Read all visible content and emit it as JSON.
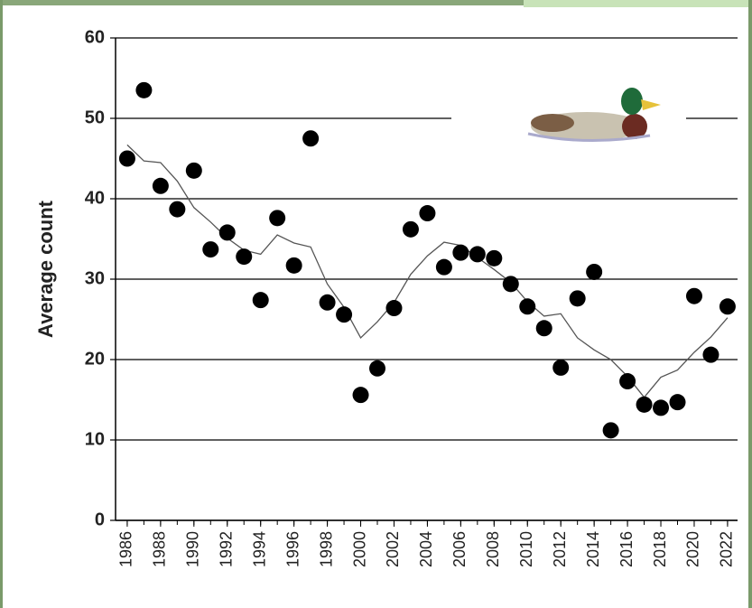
{
  "chart_data": {
    "type": "scatter",
    "y_label": "Average count",
    "x": [
      1986,
      1987,
      1988,
      1989,
      1990,
      1991,
      1992,
      1993,
      1994,
      1995,
      1996,
      1997,
      1998,
      1999,
      2000,
      2001,
      2002,
      2003,
      2004,
      2005,
      2006,
      2007,
      2008,
      2009,
      2010,
      2011,
      2012,
      2013,
      2014,
      2015,
      2016,
      2017,
      2018,
      2019,
      2020,
      2021,
      2022
    ],
    "series": [
      {
        "type": "scatter",
        "color": "#000000",
        "values": [
          45.0,
          53.5,
          41.6,
          38.7,
          43.5,
          33.7,
          35.8,
          32.8,
          27.4,
          37.6,
          31.7,
          47.5,
          27.1,
          25.6,
          15.6,
          18.9,
          26.4,
          36.2,
          38.2,
          31.5,
          33.3,
          33.1,
          32.6,
          29.4,
          26.6,
          23.9,
          19.0,
          27.6,
          30.9,
          11.2,
          17.3,
          14.4,
          14.0,
          14.7,
          27.9,
          20.6,
          26.6
        ]
      },
      {
        "type": "line",
        "color": "#555555",
        "values": [
          46.7,
          44.7,
          44.5,
          42.2,
          38.9,
          37.1,
          35.1,
          33.6,
          33.1,
          35.5,
          34.5,
          34.0,
          29.4,
          26.5,
          22.7,
          24.7,
          27.1,
          30.6,
          32.9,
          34.6,
          34.2,
          32.7,
          31.2,
          29.6,
          27.2,
          25.4,
          25.7,
          22.7,
          21.2,
          20.0,
          17.9,
          15.3,
          17.8,
          18.7,
          20.9,
          22.8,
          25.2
        ]
      }
    ],
    "xlim": [
      1985.3,
      2022.6
    ],
    "xticks": [
      1986,
      1988,
      1990,
      1992,
      1994,
      1996,
      1998,
      2000,
      2002,
      2004,
      2006,
      2008,
      2010,
      2012,
      2014,
      2016,
      2018,
      2020,
      2022
    ],
    "ylim": [
      0,
      60
    ],
    "yticks": [
      0,
      10,
      20,
      30,
      40,
      50,
      60
    ],
    "grid": true
  }
}
